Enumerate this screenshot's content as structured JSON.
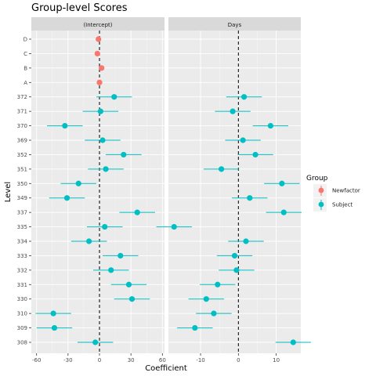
{
  "chart_data": {
    "type": "scatter",
    "title": "Group-level Scores",
    "xlabel": "Coefficient",
    "ylabel": "Level",
    "legend": {
      "title": "Group",
      "position": "right",
      "entries": [
        {
          "name": "Newfactor",
          "color": "#F8766D"
        },
        {
          "name": "Subject",
          "color": "#00BFC4"
        }
      ]
    },
    "levels": [
      "D",
      "C",
      "B",
      "A",
      "372",
      "371",
      "370",
      "369",
      "352",
      "351",
      "350",
      "349",
      "337",
      "335",
      "334",
      "333",
      "332",
      "331",
      "330",
      "310",
      "309",
      "308"
    ],
    "panels": [
      {
        "name": "(Intercept)",
        "xlim": [
          -65,
          62
        ],
        "xticks": [
          -60,
          -30,
          0,
          30,
          60
        ],
        "xtick_labels": [
          "-60",
          "-30",
          "0",
          "30",
          "60"
        ],
        "points": [
          {
            "level": "D",
            "group": "Newfactor",
            "est": -1,
            "lo": -2,
            "hi": 0
          },
          {
            "level": "C",
            "group": "Newfactor",
            "est": -2,
            "lo": -3,
            "hi": -1
          },
          {
            "level": "B",
            "group": "Newfactor",
            "est": 2,
            "lo": 1,
            "hi": 3
          },
          {
            "level": "A",
            "group": "Newfactor",
            "est": 0,
            "lo": -1,
            "hi": 1
          },
          {
            "level": "372",
            "group": "Subject",
            "est": 14,
            "lo": -3,
            "hi": 31
          },
          {
            "level": "371",
            "group": "Subject",
            "est": 1,
            "lo": -16,
            "hi": 18
          },
          {
            "level": "370",
            "group": "Subject",
            "est": -33,
            "lo": -50,
            "hi": -16
          },
          {
            "level": "369",
            "group": "Subject",
            "est": 3,
            "lo": -14,
            "hi": 20
          },
          {
            "level": "352",
            "group": "Subject",
            "est": 23,
            "lo": 6,
            "hi": 40
          },
          {
            "level": "351",
            "group": "Subject",
            "est": 6,
            "lo": -11,
            "hi": 23
          },
          {
            "level": "350",
            "group": "Subject",
            "est": -20,
            "lo": -37,
            "hi": -3
          },
          {
            "level": "349",
            "group": "Subject",
            "est": -31,
            "lo": -48,
            "hi": -14
          },
          {
            "level": "337",
            "group": "Subject",
            "est": 36,
            "lo": 19,
            "hi": 53
          },
          {
            "level": "335",
            "group": "Subject",
            "est": 5,
            "lo": -12,
            "hi": 22
          },
          {
            "level": "334",
            "group": "Subject",
            "est": -10,
            "lo": -27,
            "hi": 7
          },
          {
            "level": "333",
            "group": "Subject",
            "est": 20,
            "lo": 3,
            "hi": 37
          },
          {
            "level": "332",
            "group": "Subject",
            "est": 11,
            "lo": -6,
            "hi": 28
          },
          {
            "level": "331",
            "group": "Subject",
            "est": 28,
            "lo": 11,
            "hi": 45
          },
          {
            "level": "330",
            "group": "Subject",
            "est": 31,
            "lo": 14,
            "hi": 48
          },
          {
            "level": "310",
            "group": "Subject",
            "est": -44,
            "lo": -61,
            "hi": -27
          },
          {
            "level": "309",
            "group": "Subject",
            "est": -43,
            "lo": -60,
            "hi": -26
          },
          {
            "level": "308",
            "group": "Subject",
            "est": -4,
            "lo": -21,
            "hi": 13
          }
        ]
      },
      {
        "name": "Days",
        "xlim": [
          -18.5,
          16.5
        ],
        "xticks": [
          -10,
          0,
          10
        ],
        "xtick_labels": [
          "-10",
          "0",
          "10"
        ],
        "points": [
          {
            "level": "D",
            "group": "Newfactor",
            "est": null,
            "lo": null,
            "hi": null
          },
          {
            "level": "C",
            "group": "Newfactor",
            "est": null,
            "lo": null,
            "hi": null
          },
          {
            "level": "B",
            "group": "Newfactor",
            "est": null,
            "lo": null,
            "hi": null
          },
          {
            "level": "A",
            "group": "Newfactor",
            "est": null,
            "lo": null,
            "hi": null
          },
          {
            "level": "372",
            "group": "Subject",
            "est": 1.5,
            "lo": -3.2,
            "hi": 6.2
          },
          {
            "level": "371",
            "group": "Subject",
            "est": -1.5,
            "lo": -6.2,
            "hi": 3.2
          },
          {
            "level": "370",
            "group": "Subject",
            "est": 8.5,
            "lo": 3.8,
            "hi": 13.2
          },
          {
            "level": "369",
            "group": "Subject",
            "est": 1.2,
            "lo": -3.5,
            "hi": 5.9
          },
          {
            "level": "352",
            "group": "Subject",
            "est": 4.5,
            "lo": -0.2,
            "hi": 9.2
          },
          {
            "level": "351",
            "group": "Subject",
            "est": -4.5,
            "lo": -9.2,
            "hi": 0.2
          },
          {
            "level": "350",
            "group": "Subject",
            "est": 11.5,
            "lo": 6.8,
            "hi": 16.2
          },
          {
            "level": "349",
            "group": "Subject",
            "est": 3.0,
            "lo": -1.7,
            "hi": 7.7
          },
          {
            "level": "337",
            "group": "Subject",
            "est": 12.0,
            "lo": 7.3,
            "hi": 16.7
          },
          {
            "level": "335",
            "group": "Subject",
            "est": -17.0,
            "lo": -21.7,
            "hi": -12.3
          },
          {
            "level": "334",
            "group": "Subject",
            "est": 2.0,
            "lo": -2.7,
            "hi": 6.7
          },
          {
            "level": "333",
            "group": "Subject",
            "est": -1.0,
            "lo": -5.7,
            "hi": 3.7
          },
          {
            "level": "332",
            "group": "Subject",
            "est": -0.5,
            "lo": -5.2,
            "hi": 4.2
          },
          {
            "level": "331",
            "group": "Subject",
            "est": -5.5,
            "lo": -10.2,
            "hi": -0.8
          },
          {
            "level": "330",
            "group": "Subject",
            "est": -8.5,
            "lo": -13.2,
            "hi": -3.8
          },
          {
            "level": "310",
            "group": "Subject",
            "est": -6.5,
            "lo": -11.2,
            "hi": -1.8
          },
          {
            "level": "309",
            "group": "Subject",
            "est": -11.5,
            "lo": -16.2,
            "hi": -6.8
          },
          {
            "level": "308",
            "group": "Subject",
            "est": 14.5,
            "lo": 9.8,
            "hi": 19.2
          }
        ]
      }
    ],
    "reference_line": {
      "x": 0,
      "style": "dashed"
    },
    "grid": true
  }
}
